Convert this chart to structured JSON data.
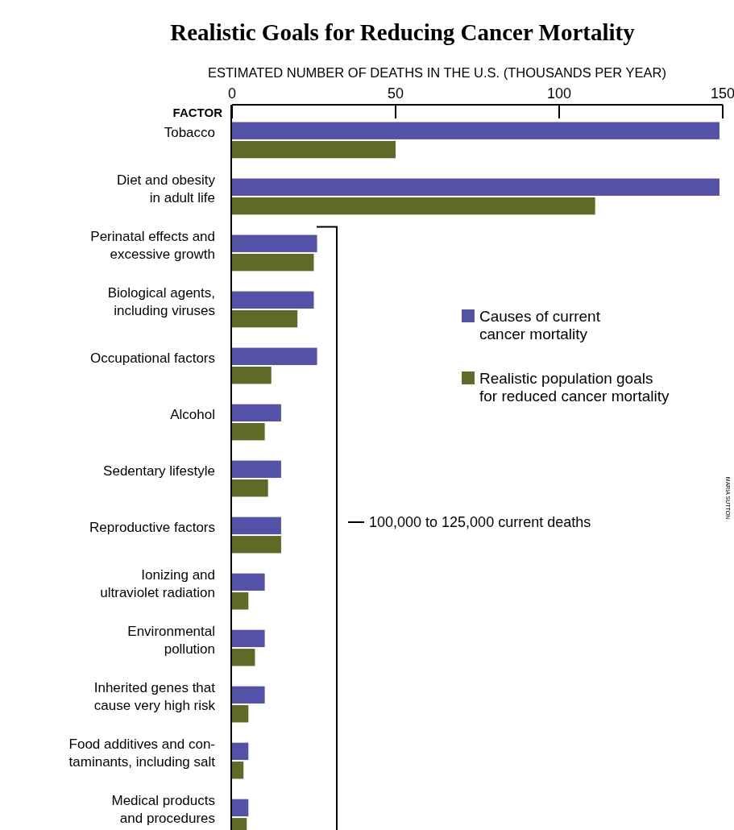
{
  "chart_data": {
    "type": "bar",
    "orientation": "horizontal",
    "title": "Realistic Goals for Reducing Cancer Mortality",
    "xlabel": "ESTIMATED NUMBER OF DEATHS IN THE U.S. (THOUSANDS PER YEAR)",
    "ylabel": "FACTOR",
    "categories": [
      "Tobacco",
      "Diet and obesity\nin adult life",
      "Perinatal effects and\nexcessive growth",
      "Biological agents,\nincluding viruses",
      "Occupational factors",
      "Alcohol",
      "Sedentary lifestyle",
      "Reproductive factors",
      "Ionizing and\nultraviolet radiation",
      "Environmental\npollution",
      "Inherited genes that\ncause very high risk",
      "Food additives and con-\ntaminants, including salt",
      "Medical products\nand procedures"
    ],
    "series": [
      {
        "name": "Causes of current\ncancer mortality",
        "color": "#5352a8",
        "values": [
          149,
          149,
          26,
          25,
          26,
          15,
          15,
          15,
          10,
          10,
          10,
          5,
          5
        ]
      },
      {
        "name": "Realistic population goals\nfor reduced cancer mortality",
        "color": "#5e6a26",
        "values": [
          50,
          111,
          25,
          20,
          12,
          10,
          11,
          15,
          5,
          7,
          5,
          3.5,
          4.5
        ]
      }
    ],
    "xlim": [
      0,
      150
    ],
    "xticks": [
      0,
      50,
      100,
      150
    ],
    "legend": "right",
    "grid": false,
    "annotations": [
      "100,000 to 125,000 current deaths",
      "MARIA SUTTON"
    ]
  }
}
